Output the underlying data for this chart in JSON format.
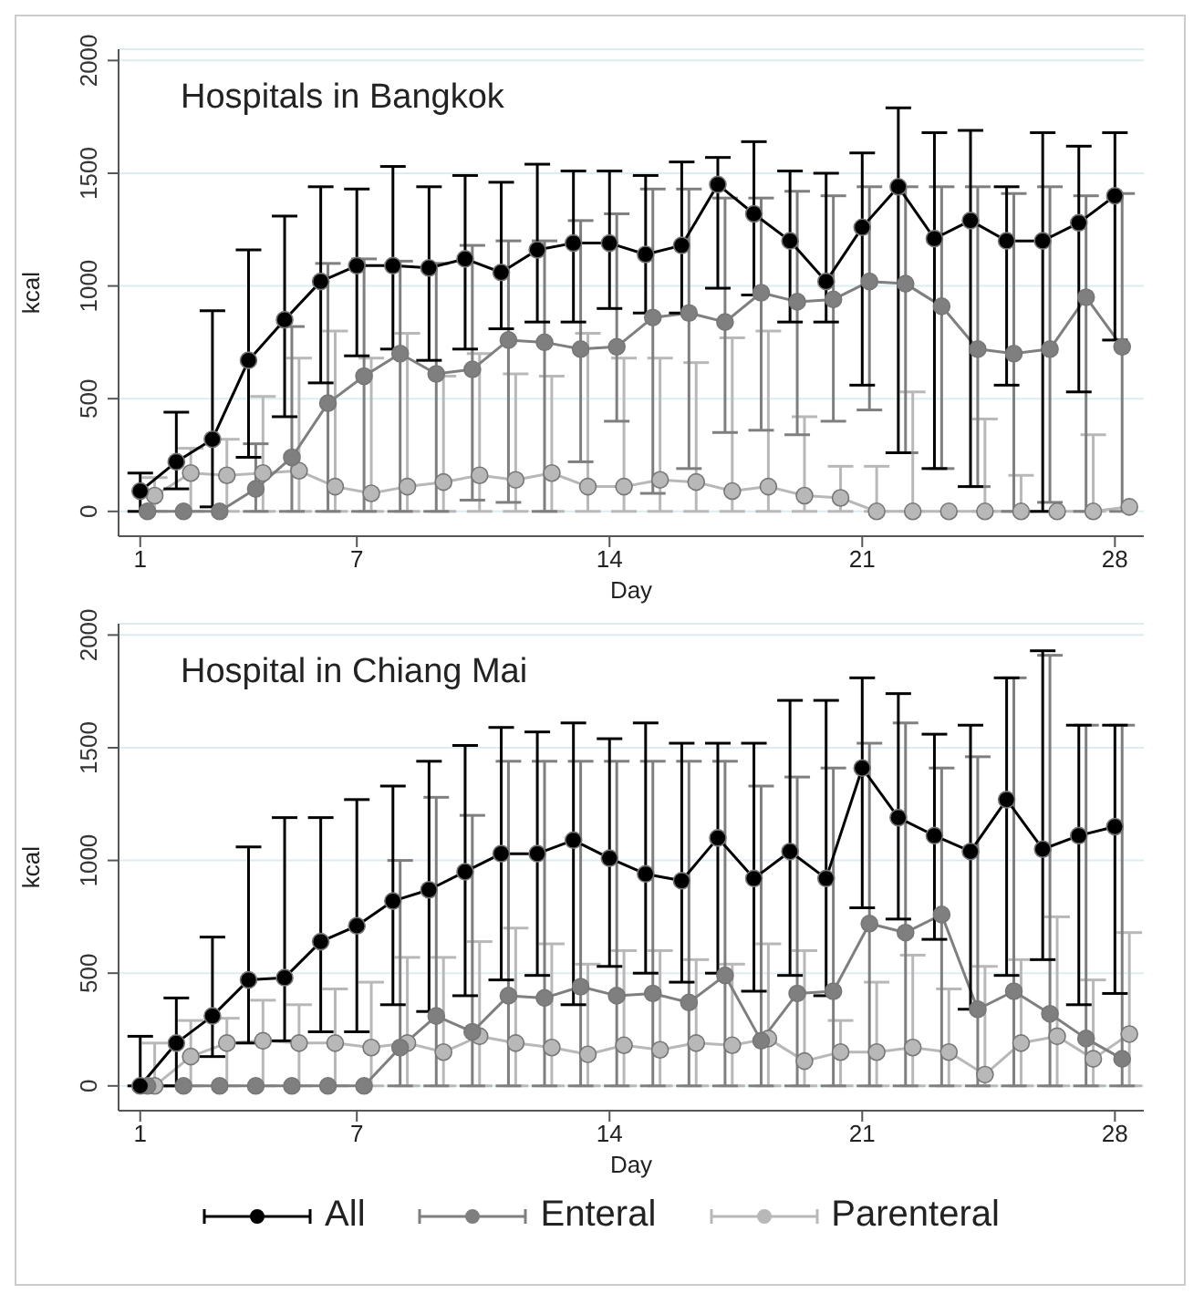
{
  "chart_data": [
    {
      "type": "line",
      "title": "Hospitals in Bangkok",
      "xlabel": "Day",
      "ylabel": "kcal",
      "xlim": [
        0.4,
        28.8
      ],
      "xticks": [
        1,
        7,
        14,
        21,
        28
      ],
      "ylim": [
        -110,
        2050
      ],
      "yticks": [
        0,
        500,
        1000,
        1500,
        2000
      ],
      "grid": "y",
      "marker": "circle",
      "series": [
        {
          "color": "#000000",
          "x": [
            1,
            2,
            3,
            4,
            5,
            6,
            7,
            8,
            9,
            10,
            11,
            12,
            13,
            14,
            15,
            16,
            17,
            18,
            19,
            20,
            21,
            22,
            23,
            24,
            25,
            26,
            27,
            28
          ],
          "values": [
            90,
            220,
            320,
            670,
            850,
            1020,
            1090,
            1090,
            1080,
            1120,
            1060,
            1160,
            1190,
            1190,
            1140,
            1180,
            1450,
            1320,
            1200,
            1020,
            1260,
            1440,
            1210,
            1290,
            1200,
            1200,
            1280,
            1400
          ],
          "errors": [
            [
              0,
              170
            ],
            [
              100,
              440
            ],
            [
              20,
              890
            ],
            [
              240,
              1160
            ],
            [
              420,
              1310
            ],
            [
              570,
              1440
            ],
            [
              690,
              1430
            ],
            [
              720,
              1530
            ],
            [
              670,
              1440
            ],
            [
              720,
              1490
            ],
            [
              810,
              1460
            ],
            [
              840,
              1540
            ],
            [
              840,
              1510
            ],
            [
              900,
              1510
            ],
            [
              880,
              1490
            ],
            [
              880,
              1550
            ],
            [
              990,
              1570
            ],
            [
              960,
              1640
            ],
            [
              840,
              1510
            ],
            [
              840,
              1500
            ],
            [
              560,
              1590
            ],
            [
              260,
              1790
            ],
            [
              190,
              1680
            ],
            [
              110,
              1690
            ],
            [
              560,
              1440
            ],
            [
              0,
              1680
            ],
            [
              530,
              1620
            ],
            [
              760,
              1680
            ]
          ]
        },
        {
          "color": "#7f7f7f",
          "x": [
            1.2,
            2.2,
            3.2,
            4.2,
            5.2,
            6.2,
            7.2,
            8.2,
            9.2,
            10.2,
            11.2,
            12.2,
            13.2,
            14.2,
            15.2,
            16.2,
            17.2,
            18.2,
            19.2,
            20.2,
            21.2,
            22.2,
            23.2,
            24.2,
            25.2,
            26.2,
            27.2,
            28.2
          ],
          "values": [
            0,
            0,
            0,
            100,
            240,
            480,
            600,
            700,
            610,
            630,
            760,
            750,
            720,
            730,
            860,
            880,
            840,
            970,
            930,
            940,
            1020,
            1010,
            910,
            720,
            700,
            720,
            950,
            730
          ],
          "errors": [
            null,
            null,
            null,
            [
              0,
              300
            ],
            [
              0,
              820
            ],
            [
              0,
              1100
            ],
            [
              0,
              1120
            ],
            [
              0,
              1110
            ],
            [
              0,
              1100
            ],
            [
              50,
              1180
            ],
            [
              40,
              1200
            ],
            [
              0,
              1200
            ],
            [
              220,
              1290
            ],
            [
              400,
              1320
            ],
            [
              80,
              1430
            ],
            [
              190,
              1430
            ],
            [
              350,
              1390
            ],
            [
              360,
              1390
            ],
            [
              340,
              1420
            ],
            [
              400,
              1400
            ],
            [
              450,
              1440
            ],
            [
              260,
              1440
            ],
            [
              190,
              1440
            ],
            [
              110,
              1440
            ],
            [
              0,
              1410
            ],
            [
              40,
              1440
            ],
            [
              0,
              1400
            ],
            [
              0,
              1410
            ]
          ]
        },
        {
          "color": "#b8b8b8",
          "x": [
            1.4,
            2.4,
            3.4,
            4.4,
            5.4,
            6.4,
            7.4,
            8.4,
            9.4,
            10.4,
            11.4,
            12.4,
            13.4,
            14.4,
            15.4,
            16.4,
            17.4,
            18.4,
            19.4,
            20.4,
            21.4,
            22.4,
            23.4,
            24.4,
            25.4,
            26.4,
            27.4,
            28.4
          ],
          "values": [
            70,
            170,
            160,
            170,
            180,
            110,
            80,
            110,
            130,
            160,
            140,
            170,
            110,
            110,
            140,
            130,
            90,
            110,
            70,
            60,
            0,
            0,
            0,
            0,
            0,
            0,
            0,
            20
          ],
          "errors": [
            [
              0,
              150
            ],
            [
              0,
              280
            ],
            [
              0,
              320
            ],
            [
              0,
              510
            ],
            [
              0,
              680
            ],
            [
              0,
              800
            ],
            [
              0,
              680
            ],
            [
              0,
              790
            ],
            [
              0,
              600
            ],
            [
              0,
              700
            ],
            [
              0,
              610
            ],
            [
              0,
              600
            ],
            [
              0,
              790
            ],
            [
              0,
              680
            ],
            [
              0,
              680
            ],
            [
              0,
              660
            ],
            [
              0,
              770
            ],
            [
              0,
              800
            ],
            [
              0,
              420
            ],
            [
              0,
              200
            ],
            [
              0,
              200
            ],
            [
              0,
              530
            ],
            null,
            [
              0,
              410
            ],
            [
              0,
              160
            ],
            null,
            [
              0,
              340
            ],
            null
          ]
        }
      ]
    },
    {
      "type": "line",
      "title": "Hospital in Chiang Mai",
      "xlabel": "Day",
      "ylabel": "kcal",
      "xlim": [
        0.4,
        28.8
      ],
      "xticks": [
        1,
        7,
        14,
        21,
        28
      ],
      "ylim": [
        -110,
        2050
      ],
      "yticks": [
        0,
        500,
        1000,
        1500,
        2000
      ],
      "grid": "y",
      "legend": "bottom",
      "marker": "circle",
      "series": [
        {
          "name": "All",
          "color": "#000000",
          "x": [
            1,
            2,
            3,
            4,
            5,
            6,
            7,
            8,
            9,
            10,
            11,
            12,
            13,
            14,
            15,
            16,
            17,
            18,
            19,
            20,
            21,
            22,
            23,
            24,
            25,
            26,
            27,
            28
          ],
          "values": [
            0,
            190,
            310,
            470,
            480,
            640,
            710,
            820,
            870,
            950,
            1030,
            1030,
            1090,
            1010,
            940,
            910,
            1100,
            920,
            1040,
            920,
            1410,
            1190,
            1110,
            1040,
            1270,
            1050,
            1110,
            1150
          ],
          "errors": [
            [
              0,
              220
            ],
            [
              0,
              390
            ],
            [
              130,
              660
            ],
            [
              190,
              1060
            ],
            [
              200,
              1190
            ],
            [
              240,
              1190
            ],
            [
              240,
              1270
            ],
            [
              360,
              1330
            ],
            [
              330,
              1440
            ],
            [
              400,
              1510
            ],
            [
              470,
              1590
            ],
            [
              490,
              1570
            ],
            [
              360,
              1610
            ],
            [
              530,
              1540
            ],
            [
              500,
              1610
            ],
            [
              460,
              1520
            ],
            [
              500,
              1520
            ],
            [
              420,
              1520
            ],
            [
              490,
              1710
            ],
            [
              400,
              1710
            ],
            [
              790,
              1810
            ],
            [
              740,
              1740
            ],
            [
              650,
              1560
            ],
            [
              340,
              1600
            ],
            [
              490,
              1810
            ],
            [
              560,
              1930
            ],
            [
              360,
              1600
            ],
            [
              410,
              1600
            ]
          ]
        },
        {
          "name": "Enteral",
          "color": "#7f7f7f",
          "x": [
            1.2,
            2.2,
            3.2,
            4.2,
            5.2,
            6.2,
            7.2,
            8.2,
            9.2,
            10.2,
            11.2,
            12.2,
            13.2,
            14.2,
            15.2,
            16.2,
            17.2,
            18.2,
            19.2,
            20.2,
            21.2,
            22.2,
            23.2,
            24.2,
            25.2,
            26.2,
            27.2,
            28.2
          ],
          "values": [
            0,
            0,
            0,
            0,
            0,
            0,
            0,
            170,
            310,
            240,
            400,
            390,
            440,
            400,
            410,
            370,
            490,
            200,
            410,
            420,
            720,
            680,
            760,
            340,
            420,
            320,
            210,
            120
          ],
          "errors": [
            null,
            null,
            null,
            null,
            null,
            null,
            null,
            [
              0,
              1000
            ],
            [
              0,
              1280
            ],
            [
              0,
              1200
            ],
            [
              0,
              1440
            ],
            [
              0,
              1440
            ],
            [
              0,
              1440
            ],
            [
              0,
              1440
            ],
            [
              0,
              1440
            ],
            [
              0,
              1440
            ],
            [
              0,
              1440
            ],
            [
              0,
              1330
            ],
            [
              0,
              1370
            ],
            [
              0,
              1410
            ],
            [
              0,
              1520
            ],
            [
              0,
              1610
            ],
            [
              0,
              1410
            ],
            [
              0,
              1460
            ],
            [
              0,
              1810
            ],
            [
              0,
              1910
            ],
            [
              0,
              1600
            ],
            [
              0,
              1600
            ]
          ]
        },
        {
          "name": "Parenteral",
          "color": "#b8b8b8",
          "x": [
            1.4,
            2.4,
            3.4,
            4.4,
            5.4,
            6.4,
            7.4,
            8.4,
            9.4,
            10.4,
            11.4,
            12.4,
            13.4,
            14.4,
            15.4,
            16.4,
            17.4,
            18.4,
            19.4,
            20.4,
            21.4,
            22.4,
            23.4,
            24.4,
            25.4,
            26.4,
            27.4,
            28.4
          ],
          "values": [
            0,
            130,
            190,
            200,
            190,
            190,
            170,
            190,
            150,
            220,
            190,
            170,
            140,
            180,
            160,
            190,
            180,
            210,
            110,
            150,
            150,
            170,
            150,
            50,
            190,
            220,
            120,
            230
          ],
          "errors": [
            [
              0,
              190
            ],
            [
              0,
              290
            ],
            [
              0,
              300
            ],
            [
              0,
              380
            ],
            [
              0,
              360
            ],
            [
              0,
              430
            ],
            [
              0,
              460
            ],
            [
              0,
              570
            ],
            [
              0,
              570
            ],
            [
              0,
              640
            ],
            [
              0,
              700
            ],
            [
              0,
              630
            ],
            [
              0,
              540
            ],
            [
              0,
              600
            ],
            [
              0,
              600
            ],
            [
              0,
              560
            ],
            [
              0,
              540
            ],
            [
              0,
              630
            ],
            [
              0,
              600
            ],
            [
              0,
              290
            ],
            [
              0,
              460
            ],
            [
              0,
              580
            ],
            [
              0,
              430
            ],
            [
              0,
              530
            ],
            [
              0,
              560
            ],
            [
              0,
              750
            ],
            [
              0,
              470
            ],
            [
              0,
              680
            ]
          ]
        }
      ]
    }
  ]
}
